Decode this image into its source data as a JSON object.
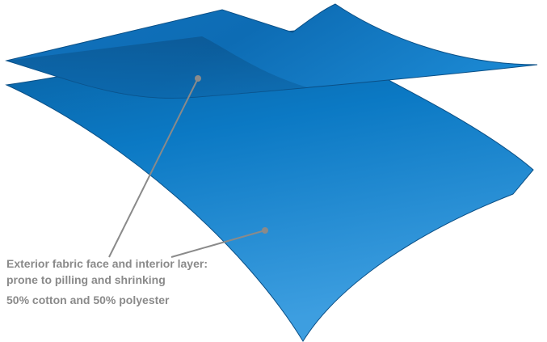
{
  "label": {
    "lines": [
      "Exterior fabric face and interior layer:",
      "prone to pilling and shrinking",
      "50% cotton and 50% polyester"
    ]
  }
}
